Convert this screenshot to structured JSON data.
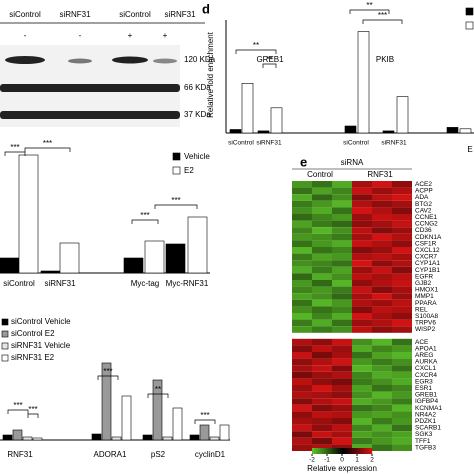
{
  "blot": {
    "lanes": [
      "siControl",
      "siRNF31",
      "siControl",
      "siRNF31"
    ],
    "treatment": [
      "-",
      "-",
      "+",
      "+"
    ],
    "bands": [
      "120 KDa",
      "66 KDa",
      "37 KDa"
    ]
  },
  "chart_data": [
    {
      "type": "bar",
      "categories": [
        "siControl",
        "siRNF31",
        "Myc-tag",
        "Myc-RNF31"
      ],
      "series": [
        {
          "name": "Vehicle",
          "color": "#000000",
          "values": [
            0.75,
            0.1,
            0.75,
            1.45
          ]
        },
        {
          "name": "E2",
          "color": "#ffffff",
          "values": [
            5.9,
            1.5,
            1.6,
            2.8
          ]
        }
      ],
      "ylim": [
        0,
        6
      ],
      "significance": [
        "***",
        "***",
        "***",
        "***"
      ]
    },
    {
      "type": "bar",
      "categories": [
        "RNF31",
        "ADORA1",
        "pS2",
        "cyclinD1"
      ],
      "series": [
        {
          "name": "siControl Vehicle",
          "color": "#000000",
          "values": [
            0.5,
            0.6,
            0.5,
            0.5
          ]
        },
        {
          "name": "siControl E2",
          "color": "#999999",
          "values": [
            1.0,
            7.7,
            6.0,
            1.5
          ]
        },
        {
          "name": "siRNF31 Vehicle",
          "color": "#e6e6e6",
          "values": [
            0.3,
            0.3,
            0.3,
            0.3
          ]
        },
        {
          "name": "siRNF31 E2",
          "color": "#ffffff",
          "values": [
            0.2,
            4.4,
            3.2,
            1.5
          ]
        }
      ],
      "ylim": [
        0,
        8
      ],
      "significance": [
        "***",
        "***",
        "***",
        "**",
        "***"
      ]
    },
    {
      "type": "bar",
      "panel": "d",
      "y_label": "Relative fold enrichment",
      "categories": [
        "GREB1",
        "PKIB",
        "E"
      ],
      "group_labels": [
        "siControl",
        "siRNF31"
      ],
      "series": [
        {
          "color": "#000000",
          "values": [
            0.5,
            1.0,
            0.8
          ]
        },
        {
          "color": "#ffffff",
          "values": [
            7.1,
            14.5,
            0.6
          ]
        },
        {
          "color": "#000000",
          "values": [
            0.3,
            0.3,
            null
          ]
        },
        {
          "color": "#ffffff",
          "values": [
            3.6,
            5.2,
            null
          ]
        }
      ],
      "ylim": [
        0,
        15
      ],
      "significance": [
        "**",
        "**",
        "**",
        "***"
      ]
    }
  ],
  "heatmap": {
    "panel": "e",
    "title": "siRNA",
    "groups": [
      "Control",
      "RNF31"
    ],
    "genes": [
      "ACE2",
      "ACPP",
      "ADA",
      "BTG2",
      "CAV2",
      "CCNE1",
      "CCNG2",
      "CD36",
      "CDKN1A",
      "CSF1R",
      "CXCL12",
      "CXCR7",
      "CYP1A1",
      "CYP1B1",
      "EGFR",
      "GJB2",
      "HMOX1",
      "MMP1",
      "PPARA",
      "REL",
      "S100A8",
      "TRPV6",
      "WISP2",
      "ACE",
      "APOA1",
      "AREG",
      "AURKA",
      "CXCL1",
      "CXCR4",
      "EGR3",
      "ESR1",
      "GREB1",
      "IGFBP4",
      "KCNMA1",
      "NR4A2",
      "PDZK1",
      "SCARB1",
      "SGK3",
      "TFF1",
      "TGFB3"
    ],
    "values": [
      [
        -1.6,
        -1.2,
        -1.8,
        1.5,
        1.9,
        1.3
      ],
      [
        -1.2,
        -1.7,
        -1.4,
        1.8,
        1.4,
        1.6
      ],
      [
        -1.8,
        -1.1,
        -1.5,
        1.2,
        1.7,
        1.9
      ],
      [
        -1.3,
        -1.6,
        -1.9,
        1.6,
        1.3,
        1.5
      ],
      [
        -1.5,
        -1.8,
        -1.2,
        1.9,
        1.6,
        1.2
      ],
      [
        -1.1,
        -1.4,
        -1.6,
        1.4,
        1.8,
        1.7
      ],
      [
        -1.7,
        -1.3,
        -1.1,
        1.3,
        1.5,
        1.8
      ],
      [
        -1.4,
        -1.9,
        -1.5,
        1.7,
        1.2,
        1.4
      ],
      [
        -1.6,
        -1.5,
        -1.3,
        1.5,
        1.9,
        1.6
      ],
      [
        -1.2,
        -1.6,
        -1.8,
        1.8,
        1.6,
        1.3
      ],
      [
        -1.9,
        -1.2,
        -1.4,
        1.2,
        1.4,
        1.9
      ],
      [
        -1.3,
        -1.7,
        -1.6,
        1.6,
        1.7,
        1.5
      ],
      [
        -1.5,
        -1.4,
        -1.2,
        1.9,
        1.3,
        1.6
      ],
      [
        -1.8,
        -1.3,
        -1.7,
        1.4,
        1.8,
        1.2
      ],
      [
        -1.1,
        -1.8,
        -1.5,
        1.7,
        1.5,
        1.7
      ],
      [
        -1.6,
        -1.1,
        -1.9,
        1.3,
        1.6,
        1.8
      ],
      [
        -1.4,
        -1.6,
        -1.3,
        1.8,
        1.2,
        1.5
      ],
      [
        -1.7,
        -1.5,
        -1.1,
        1.5,
        1.9,
        1.4
      ],
      [
        -1.2,
        -1.9,
        -1.6,
        1.6,
        1.4,
        1.7
      ],
      [
        -1.5,
        -1.2,
        -1.4,
        1.2,
        1.7,
        1.6
      ],
      [
        -1.9,
        -1.4,
        -1.8,
        1.9,
        1.5,
        1.3
      ],
      [
        -1.3,
        -1.8,
        -1.2,
        1.4,
        1.6,
        1.9
      ],
      [
        -1.6,
        -1.3,
        -1.5,
        1.7,
        1.3,
        1.5
      ],
      [
        1.6,
        1.3,
        1.8,
        -1.5,
        -1.9,
        -1.2
      ],
      [
        1.2,
        1.7,
        1.4,
        -1.8,
        -1.4,
        -1.6
      ],
      [
        1.8,
        1.1,
        1.5,
        -1.2,
        -1.7,
        -1.9
      ],
      [
        1.3,
        1.6,
        1.9,
        -1.6,
        -1.3,
        -1.5
      ],
      [
        1.5,
        1.8,
        1.2,
        -1.9,
        -1.6,
        -1.2
      ],
      [
        1.1,
        1.4,
        1.6,
        -1.4,
        -1.8,
        -1.7
      ],
      [
        1.7,
        1.3,
        1.1,
        -1.3,
        -1.5,
        -1.8
      ],
      [
        1.4,
        1.9,
        1.5,
        -1.7,
        -1.2,
        -1.4
      ],
      [
        1.6,
        1.5,
        1.3,
        -1.5,
        -1.9,
        -1.6
      ],
      [
        1.2,
        1.6,
        1.8,
        -1.8,
        -1.6,
        -1.3
      ],
      [
        1.9,
        1.2,
        1.4,
        -1.2,
        -1.4,
        -1.9
      ],
      [
        1.3,
        1.7,
        1.6,
        -1.6,
        -1.7,
        -1.5
      ],
      [
        1.5,
        1.4,
        1.2,
        -1.9,
        -1.3,
        -1.6
      ],
      [
        1.8,
        1.3,
        1.7,
        -1.4,
        -1.8,
        -1.2
      ],
      [
        1.1,
        1.8,
        1.5,
        -1.7,
        -1.5,
        -1.7
      ],
      [
        1.6,
        1.1,
        1.9,
        -1.3,
        -1.6,
        -1.8
      ],
      [
        1.4,
        1.6,
        1.3,
        -1.8,
        -1.2,
        -1.5
      ]
    ],
    "colorbar_ticks": [
      -2,
      -1,
      0,
      1,
      2
    ],
    "colorbar_label": "Relative expression"
  }
}
